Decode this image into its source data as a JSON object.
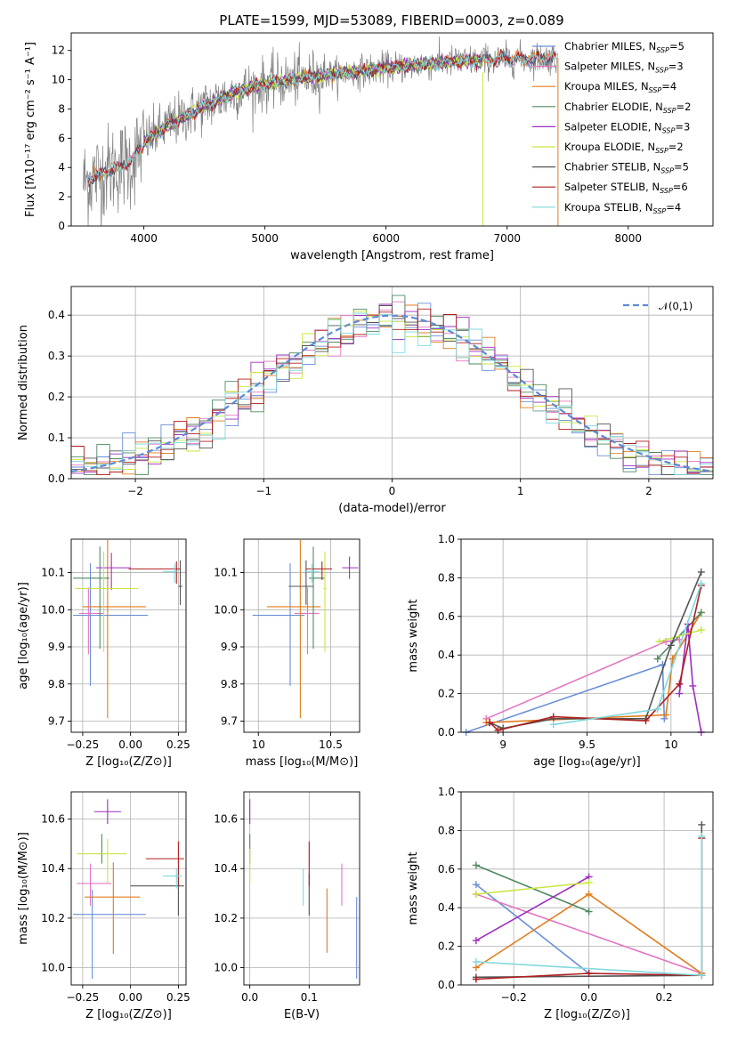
{
  "page": {
    "title": "PLATE=1599, MJD=53089, FIBERID=0003, z=0.089"
  },
  "colors": {
    "Chabrier MILES": "#6a8fd8",
    "Salpeter MILES": "#e377c2",
    "Kroupa MILES": "#e07c1e",
    "Chabrier ELODIE": "#4f8a5f",
    "Salpeter ELODIE": "#9e2fbf",
    "Kroupa ELODIE": "#c8e640",
    "Chabrier STELIB": "#555555",
    "Salpeter STELIB": "#b01e1e",
    "Kroupa STELIB": "#7fd8dc",
    "data": "#808080",
    "normal": "#5b8ad6"
  },
  "chart_data": [
    {
      "id": "spectrum",
      "type": "line",
      "title": "PLATE=1599, MJD=53089, FIBERID=0003, z=0.089",
      "xlabel": "wavelength [Angstrom, rest frame]",
      "ylabel": "Flux [fλ10⁻¹⁷ erg cm⁻² s⁻¹ A⁻¹]",
      "xlim": [
        3400,
        8700
      ],
      "ylim": [
        0,
        13.2
      ],
      "xticks": [
        4000,
        5000,
        6000,
        7000,
        8000
      ],
      "yticks": [
        0,
        2,
        4,
        6,
        8,
        10,
        12
      ],
      "legend_position": "upper right",
      "legend": [
        {
          "base": "Chabrier MILES",
          "nssp": "5"
        },
        {
          "base": "Salpeter MILES",
          "nssp": "3"
        },
        {
          "base": "Kroupa MILES",
          "nssp": "4"
        },
        {
          "base": "Chabrier ELODIE",
          "nssp": "2"
        },
        {
          "base": "Salpeter ELODIE",
          "nssp": "3"
        },
        {
          "base": "Kroupa ELODIE",
          "nssp": "2"
        },
        {
          "base": "Chabrier STELIB",
          "nssp": "5"
        },
        {
          "base": "Salpeter STELIB",
          "nssp": "6"
        },
        {
          "base": "Kroupa STELIB",
          "nssp": "4"
        }
      ],
      "continuum": {
        "wavelength": [
          3500,
          3700,
          3900,
          4000,
          4200,
          4500,
          4800,
          5000,
          5300,
          5600,
          6000,
          6500,
          7000,
          7300,
          7430
        ],
        "flux": [
          3.0,
          3.8,
          4.4,
          5.7,
          6.9,
          8.2,
          9.3,
          9.7,
          10.1,
          10.4,
          10.8,
          11.2,
          11.4,
          11.5,
          11.5
        ]
      },
      "series_ranges": {
        "Chabrier MILES": [
          3540,
          7410
        ],
        "Salpeter MILES": [
          3540,
          7410
        ],
        "Kroupa MILES": [
          3540,
          7410
        ],
        "Chabrier ELODIE": [
          4000,
          6800
        ],
        "Salpeter ELODIE": [
          4000,
          6800
        ],
        "Kroupa ELODIE": [
          4000,
          6800
        ],
        "Chabrier STELIB": [
          3540,
          7410
        ],
        "Salpeter STELIB": [
          3540,
          7410
        ],
        "Kroupa STELIB": [
          3540,
          7410
        ]
      },
      "data_range": [
        3500,
        7420
      ]
    },
    {
      "id": "residuals",
      "type": "histogram",
      "xlabel": "(data-model)/error",
      "ylabel": "Normed distribution",
      "xlim": [
        -2.5,
        2.5
      ],
      "ylim": [
        0,
        0.47
      ],
      "xticks": [
        -2,
        -1,
        0,
        1,
        2
      ],
      "yticks": [
        0.0,
        0.1,
        0.2,
        0.3,
        0.4
      ],
      "bin_width": 0.1,
      "reference": {
        "label": "𝒩(0,1)",
        "mean": 0,
        "sigma": 1,
        "style": "dashed",
        "legend_position": "upper right"
      }
    },
    {
      "id": "age-vs-Z",
      "type": "errorbar",
      "xlabel": "Z [log₁₀(Z/Z⊙)]",
      "ylabel": "age  [log₁₀(age/yr)]",
      "xlim": [
        -0.31,
        0.29
      ],
      "ylim": [
        9.67,
        10.19
      ],
      "xticks": [
        -0.25,
        0.0,
        0.25
      ],
      "yticks": [
        9.7,
        9.8,
        9.9,
        10.0,
        10.1
      ],
      "xtick_labels": [
        "−0.25",
        "0.00",
        "0.25"
      ],
      "points": [
        {
          "series": "Chabrier MILES",
          "x": -0.21,
          "xerr": [
            0.09,
            0.3
          ],
          "y": 9.985,
          "yerr": [
            0.19,
            0.14
          ]
        },
        {
          "series": "Salpeter MILES",
          "x": -0.22,
          "xerr": [
            0.05,
            0.08
          ],
          "y": 9.99,
          "yerr": [
            0.11,
            0.07
          ]
        },
        {
          "series": "Kroupa MILES",
          "x": -0.12,
          "xerr": [
            0.13,
            0.2
          ],
          "y": 10.008,
          "yerr": [
            0.3,
            0.18
          ]
        },
        {
          "series": "Chabrier ELODIE",
          "x": -0.16,
          "xerr": [
            0.14,
            0.05
          ],
          "y": 10.085,
          "yerr": [
            0.19,
            0.085
          ]
        },
        {
          "series": "Salpeter ELODIE",
          "x": -0.1,
          "xerr": [
            0.08,
            0.1
          ],
          "y": 10.113,
          "yerr": [
            0.06,
            0.04
          ]
        },
        {
          "series": "Kroupa ELODIE",
          "x": -0.14,
          "xerr": [
            0.15,
            0.18
          ],
          "y": 10.057,
          "yerr": [
            0.17,
            0.1
          ]
        },
        {
          "series": "Chabrier STELIB",
          "x": 0.26,
          "xerr": [
            0.01,
            0.01
          ],
          "y": 10.063,
          "yerr": [
            0.05,
            0.07
          ]
        },
        {
          "series": "Salpeter STELIB",
          "x": 0.24,
          "xerr": [
            0.25,
            0.02
          ],
          "y": 10.11,
          "yerr": [
            0.04,
            0.02
          ]
        },
        {
          "series": "Kroupa STELIB",
          "x": 0.23,
          "xerr": [
            0.06,
            0.02
          ],
          "y": 10.103,
          "yerr": [
            0.03,
            0.02
          ]
        }
      ]
    },
    {
      "id": "age-vs-mass",
      "type": "errorbar",
      "xlabel": "mass [log₁₀(M/M⊙)]",
      "ylabel": "",
      "xlim": [
        9.9,
        10.7
      ],
      "ylim": [
        9.67,
        10.19
      ],
      "xticks": [
        10.0,
        10.5
      ],
      "yticks": [
        9.7,
        9.8,
        9.9,
        10.0,
        10.1
      ],
      "points": [
        {
          "series": "Chabrier MILES",
          "x": 10.22,
          "xerr": [
            0.26,
            0.1
          ],
          "y": 9.985,
          "yerr": [
            0.19,
            0.14
          ]
        },
        {
          "series": "Salpeter MILES",
          "x": 10.34,
          "xerr": [
            0.09,
            0.08
          ],
          "y": 9.99,
          "yerr": [
            0.11,
            0.07
          ]
        },
        {
          "series": "Kroupa MILES",
          "x": 10.29,
          "xerr": [
            0.23,
            0.14
          ],
          "y": 10.008,
          "yerr": [
            0.3,
            0.18
          ]
        },
        {
          "series": "Chabrier ELODIE",
          "x": 10.38,
          "xerr": [
            0.03,
            0.08
          ],
          "y": 10.085,
          "yerr": [
            0.19,
            0.085
          ]
        },
        {
          "series": "Salpeter ELODIE",
          "x": 10.63,
          "xerr": [
            0.05,
            0.06
          ],
          "y": 10.113,
          "yerr": [
            0.03,
            0.03
          ]
        },
        {
          "series": "Kroupa ELODIE",
          "x": 10.46,
          "xerr": [
            0.01,
            0.01
          ],
          "y": 10.057,
          "yerr": [
            0.17,
            0.1
          ]
        },
        {
          "series": "Chabrier STELIB",
          "x": 10.33,
          "xerr": [
            0.12,
            0.05
          ],
          "y": 10.063,
          "yerr": [
            0.05,
            0.07
          ]
        },
        {
          "series": "Salpeter STELIB",
          "x": 10.44,
          "xerr": [
            0.11,
            0.07
          ],
          "y": 10.11,
          "yerr": [
            0.03,
            0.02
          ]
        },
        {
          "series": "Kroupa STELIB",
          "x": 10.37,
          "xerr": [
            0.05,
            0.05
          ],
          "y": 10.103,
          "yerr": [
            0.03,
            0.02
          ]
        }
      ]
    },
    {
      "id": "weight-vs-age",
      "type": "line",
      "xlabel": "age  [log₁₀(age/yr)]",
      "ylabel": "mass weight",
      "xlim": [
        8.75,
        10.25
      ],
      "ylim": [
        0.0,
        1.0
      ],
      "xticks": [
        9.0,
        9.5,
        10.0
      ],
      "yticks": [
        0.0,
        0.2,
        0.4,
        0.6,
        0.8,
        1.0
      ],
      "series": [
        {
          "name": "Chabrier MILES",
          "age": [
            8.78,
            9.95,
            9.96
          ],
          "weight": [
            0.0,
            0.35,
            0.07
          ]
        },
        {
          "name": "Salpeter MILES",
          "age": [
            8.9,
            9.97,
            10.05
          ],
          "weight": [
            0.07,
            0.47,
            0.48
          ]
        },
        {
          "name": "Kroupa MILES",
          "age": [
            8.9,
            9.97,
            10.01,
            10.18
          ],
          "weight": [
            0.05,
            0.09,
            0.38,
            0.62
          ]
        },
        {
          "name": "Chabrier ELODIE",
          "age": [
            9.92,
            10.18
          ],
          "weight": [
            0.38,
            0.62
          ]
        },
        {
          "name": "Salpeter ELODIE",
          "age": [
            10.05,
            10.1,
            10.13,
            10.18
          ],
          "weight": [
            0.2,
            0.56,
            0.24,
            0.0
          ]
        },
        {
          "name": "Kroupa ELODIE",
          "age": [
            9.93,
            10.18
          ],
          "weight": [
            0.47,
            0.53
          ]
        },
        {
          "name": "Chabrier STELIB",
          "age": [
            8.92,
            9.0,
            9.3,
            9.85,
            10.0,
            10.18
          ],
          "weight": [
            0.05,
            0.02,
            0.07,
            0.07,
            0.45,
            0.83
          ]
        },
        {
          "name": "Salpeter STELIB",
          "age": [
            8.92,
            8.97,
            9.3,
            9.85,
            10.05,
            10.18
          ],
          "weight": [
            0.05,
            0.01,
            0.08,
            0.06,
            0.25,
            0.76
          ]
        },
        {
          "name": "Kroupa STELIB",
          "age": [
            9.3,
            9.92,
            10.18
          ],
          "weight": [
            0.04,
            0.12,
            0.77
          ]
        }
      ]
    },
    {
      "id": "mass-vs-Z",
      "type": "errorbar",
      "xlabel": "Z [log₁₀(Z/Z⊙)]",
      "ylabel": "mass [log₁₀(M/M⊙)]",
      "xlim": [
        -0.31,
        0.29
      ],
      "ylim": [
        9.93,
        10.71
      ],
      "xticks": [
        -0.25,
        0.0,
        0.25
      ],
      "yticks": [
        10.0,
        10.2,
        10.4,
        10.6
      ],
      "xtick_labels": [
        "−0.25",
        "0.00",
        "0.25"
      ],
      "points": [
        {
          "series": "Chabrier MILES",
          "x": -0.2,
          "xerr": [
            0.1,
            0.28
          ],
          "y": 10.215,
          "yerr": [
            0.26,
            0.1
          ]
        },
        {
          "series": "Salpeter MILES",
          "x": -0.21,
          "xerr": [
            0.07,
            0.11
          ],
          "y": 10.34,
          "yerr": [
            0.09,
            0.08
          ]
        },
        {
          "series": "Kroupa MILES",
          "x": -0.09,
          "xerr": [
            0.15,
            0.14
          ],
          "y": 10.285,
          "yerr": [
            0.23,
            0.14
          ]
        },
        {
          "series": "Chabrier ELODIE",
          "x": -0.15,
          "xerr": [
            0.02,
            0.02
          ],
          "y": 10.46,
          "yerr": [
            0.04,
            0.08
          ]
        },
        {
          "series": "Salpeter ELODIE",
          "x": -0.12,
          "xerr": [
            0.07,
            0.07
          ],
          "y": 10.63,
          "yerr": [
            0.05,
            0.05
          ]
        },
        {
          "series": "Kroupa ELODIE",
          "x": -0.12,
          "xerr": [
            0.16,
            0.1
          ],
          "y": 10.46,
          "yerr": [
            0.12,
            0.06
          ]
        },
        {
          "series": "Chabrier STELIB",
          "x": 0.25,
          "xerr": [
            0.25,
            0.03
          ],
          "y": 10.33,
          "yerr": [
            0.12,
            0.05
          ]
        },
        {
          "series": "Salpeter STELIB",
          "x": 0.25,
          "xerr": [
            0.17,
            0.03
          ],
          "y": 10.44,
          "yerr": [
            0.11,
            0.07
          ]
        },
        {
          "series": "Kroupa STELIB",
          "x": 0.24,
          "xerr": [
            0.07,
            0.03
          ],
          "y": 10.37,
          "yerr": [
            0.05,
            0.03
          ]
        }
      ]
    },
    {
      "id": "mass-vs-EBV",
      "type": "errorbar",
      "xlabel": "E(B-V)",
      "ylabel": "",
      "xlim": [
        -0.01,
        0.185
      ],
      "ylim": [
        9.93,
        10.71
      ],
      "xticks": [
        0.0,
        0.1
      ],
      "yticks": [
        10.0,
        10.2,
        10.4,
        10.6
      ],
      "xtick_labels": [
        "0.0",
        "0.1"
      ],
      "points": [
        {
          "series": "Chabrier MILES",
          "x": 0.18,
          "xerr": [
            0,
            0
          ],
          "y": 10.215,
          "yerr": [
            0.26,
            0.07
          ]
        },
        {
          "series": "Salpeter MILES",
          "x": 0.155,
          "xerr": [
            0,
            0
          ],
          "y": 10.34,
          "yerr": [
            0.09,
            0.08
          ]
        },
        {
          "series": "Kroupa MILES",
          "x": 0.13,
          "xerr": [
            0,
            0
          ],
          "y": 10.2,
          "yerr": [
            0.14,
            0.12
          ]
        },
        {
          "series": "Chabrier ELODIE",
          "x": 0.0,
          "xerr": [
            0,
            0
          ],
          "y": 10.46,
          "yerr": [
            0.04,
            0.08
          ]
        },
        {
          "series": "Salpeter ELODIE",
          "x": 0.0,
          "xerr": [
            0,
            0
          ],
          "y": 10.63,
          "yerr": [
            0.05,
            0.05
          ]
        },
        {
          "series": "Kroupa ELODIE",
          "x": 0.0,
          "xerr": [
            0,
            0
          ],
          "y": 10.42,
          "yerr": [
            0.08,
            0.06
          ]
        },
        {
          "series": "Chabrier STELIB",
          "x": 0.1,
          "xerr": [
            0,
            0
          ],
          "y": 10.33,
          "yerr": [
            0.12,
            0.05
          ]
        },
        {
          "series": "Salpeter STELIB",
          "x": 0.1,
          "xerr": [
            0,
            0
          ],
          "y": 10.4,
          "yerr": [
            0.07,
            0.11
          ]
        },
        {
          "series": "Kroupa STELIB",
          "x": 0.09,
          "xerr": [
            0,
            0
          ],
          "y": 10.33,
          "yerr": [
            0.08,
            0.07
          ]
        }
      ]
    },
    {
      "id": "weight-vs-Z",
      "type": "line",
      "xlabel": "Z [log₁₀(Z/Z⊙)]",
      "ylabel": "mass weight",
      "xlim": [
        -0.34,
        0.33
      ],
      "ylim": [
        0.0,
        1.0
      ],
      "xticks": [
        -0.2,
        0.0,
        0.2
      ],
      "yticks": [
        0.0,
        0.2,
        0.4,
        0.6,
        0.8,
        1.0
      ],
      "xtick_labels": [
        "−0.2",
        "0.0",
        "0.2"
      ],
      "series": [
        {
          "name": "Chabrier MILES",
          "Z": [
            -0.3,
            0.0,
            0.3
          ],
          "weight": [
            0.52,
            0.06,
            0.05
          ]
        },
        {
          "name": "Salpeter MILES",
          "Z": [
            -0.3,
            0.3
          ],
          "weight": [
            0.47,
            0.06
          ]
        },
        {
          "name": "Kroupa MILES",
          "Z": [
            -0.3,
            0.0,
            0.3
          ],
          "weight": [
            0.09,
            0.47,
            0.06
          ]
        },
        {
          "name": "Chabrier ELODIE",
          "Z": [
            -0.3,
            0.0
          ],
          "weight": [
            0.62,
            0.38
          ]
        },
        {
          "name": "Salpeter ELODIE",
          "Z": [
            -0.3,
            0.0
          ],
          "weight": [
            0.23,
            0.56
          ]
        },
        {
          "name": "Kroupa ELODIE",
          "Z": [
            -0.3,
            0.0
          ],
          "weight": [
            0.47,
            0.53
          ]
        },
        {
          "name": "Chabrier STELIB",
          "Z": [
            -0.3,
            0.3,
            0.3
          ],
          "weight": [
            0.04,
            0.05,
            0.83
          ]
        },
        {
          "name": "Salpeter STELIB",
          "Z": [
            -0.3,
            0.0,
            0.3,
            0.3
          ],
          "weight": [
            0.03,
            0.06,
            0.05,
            0.76
          ]
        },
        {
          "name": "Kroupa STELIB",
          "Z": [
            -0.3,
            0.3,
            0.3
          ],
          "weight": [
            0.12,
            0.05,
            0.77
          ]
        }
      ]
    }
  ]
}
